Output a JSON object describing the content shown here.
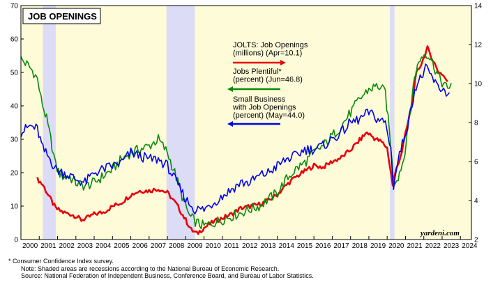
{
  "chart_data": {
    "type": "line",
    "title": "JOB OPENINGS",
    "brand": "yardeni.com",
    "left_axis": {
      "ylim": [
        0,
        70
      ],
      "ticks": [
        0,
        10,
        20,
        30,
        40,
        50,
        60,
        70
      ]
    },
    "right_axis": {
      "ylim": [
        2,
        14
      ],
      "ticks": [
        2,
        4,
        6,
        8,
        10,
        12,
        14
      ]
    },
    "x_range": [
      2000,
      2024.6
    ],
    "x_tick_labels": [
      "2000",
      "2001",
      "2002",
      "2003",
      "2004",
      "2005",
      "2006",
      "2007",
      "2008",
      "2009",
      "2010",
      "2011",
      "2012",
      "2013",
      "2014",
      "2015",
      "2016",
      "2017",
      "2018",
      "2019",
      "2020",
      "2021",
      "2022",
      "2023",
      "2024"
    ],
    "recessions": [
      [
        2001.2,
        2001.9
      ],
      [
        2007.95,
        2009.5
      ],
      [
        2020.15,
        2020.4
      ]
    ],
    "grid": false,
    "legend_placement": "top-center",
    "series": [
      {
        "name": "JOLTS: Job Openings",
        "legend_lines": [
          "JOLTS: Job Openings",
          "(millions) (Apr=10.1)"
        ],
        "axis": "right",
        "color": "#e8000b",
        "points": [
          [
            2000.9,
            5.1
          ],
          [
            2001.2,
            4.8
          ],
          [
            2001.6,
            4.1
          ],
          [
            2001.9,
            3.6
          ],
          [
            2002.3,
            3.4
          ],
          [
            2002.7,
            3.3
          ],
          [
            2003.0,
            3.2
          ],
          [
            2003.3,
            3.0
          ],
          [
            2003.6,
            3.1
          ],
          [
            2004.0,
            3.3
          ],
          [
            2004.5,
            3.4
          ],
          [
            2005.0,
            3.7
          ],
          [
            2005.5,
            3.9
          ],
          [
            2006.0,
            4.3
          ],
          [
            2006.5,
            4.5
          ],
          [
            2007.0,
            4.5
          ],
          [
            2007.5,
            4.6
          ],
          [
            2008.0,
            4.4
          ],
          [
            2008.5,
            3.8
          ],
          [
            2009.0,
            3.0
          ],
          [
            2009.3,
            2.5
          ],
          [
            2009.6,
            2.3
          ],
          [
            2010.0,
            2.6
          ],
          [
            2010.5,
            2.9
          ],
          [
            2011.0,
            3.1
          ],
          [
            2011.5,
            3.3
          ],
          [
            2012.0,
            3.6
          ],
          [
            2012.5,
            3.7
          ],
          [
            2013.0,
            3.8
          ],
          [
            2013.5,
            4.0
          ],
          [
            2014.0,
            4.3
          ],
          [
            2014.5,
            4.8
          ],
          [
            2015.0,
            5.2
          ],
          [
            2015.5,
            5.5
          ],
          [
            2016.0,
            5.8
          ],
          [
            2016.5,
            5.7
          ],
          [
            2017.0,
            6.0
          ],
          [
            2017.5,
            6.2
          ],
          [
            2018.0,
            6.6
          ],
          [
            2018.5,
            7.1
          ],
          [
            2018.9,
            7.5
          ],
          [
            2019.3,
            7.2
          ],
          [
            2019.7,
            7.0
          ],
          [
            2020.0,
            6.7
          ],
          [
            2020.3,
            4.8
          ],
          [
            2020.5,
            5.6
          ],
          [
            2020.8,
            6.5
          ],
          [
            2021.0,
            7.4
          ],
          [
            2021.3,
            8.7
          ],
          [
            2021.6,
            10.5
          ],
          [
            2021.9,
            11.1
          ],
          [
            2022.2,
            11.8
          ],
          [
            2022.5,
            11.2
          ],
          [
            2022.8,
            10.6
          ],
          [
            2023.0,
            10.5
          ],
          [
            2023.3,
            10.1
          ]
        ]
      },
      {
        "name": "Jobs Plentiful*",
        "legend_lines": [
          "Jobs Plentiful*",
          "(percent) (Jun=46.8)"
        ],
        "axis": "left",
        "color": "#0a8a0a",
        "points": [
          [
            2000.0,
            54
          ],
          [
            2000.4,
            52
          ],
          [
            2000.7,
            50
          ],
          [
            2000.9,
            48
          ],
          [
            2001.1,
            42
          ],
          [
            2001.4,
            36
          ],
          [
            2001.7,
            28
          ],
          [
            2001.9,
            22
          ],
          [
            2002.2,
            19
          ],
          [
            2002.6,
            19
          ],
          [
            2003.0,
            17
          ],
          [
            2003.5,
            16
          ],
          [
            2004.0,
            17
          ],
          [
            2004.5,
            19
          ],
          [
            2005.0,
            21
          ],
          [
            2005.5,
            24
          ],
          [
            2006.0,
            26
          ],
          [
            2006.5,
            27
          ],
          [
            2007.0,
            28
          ],
          [
            2007.5,
            30
          ],
          [
            2008.0,
            26
          ],
          [
            2008.4,
            20
          ],
          [
            2008.8,
            13
          ],
          [
            2009.2,
            7
          ],
          [
            2009.6,
            5
          ],
          [
            2010.0,
            4
          ],
          [
            2010.5,
            5
          ],
          [
            2011.0,
            6
          ],
          [
            2011.5,
            7
          ],
          [
            2012.0,
            8
          ],
          [
            2012.5,
            9
          ],
          [
            2013.0,
            10
          ],
          [
            2013.5,
            12
          ],
          [
            2014.0,
            14
          ],
          [
            2014.5,
            18
          ],
          [
            2015.0,
            21
          ],
          [
            2015.5,
            23
          ],
          [
            2016.0,
            26
          ],
          [
            2016.5,
            28
          ],
          [
            2017.0,
            31
          ],
          [
            2017.5,
            34
          ],
          [
            2018.0,
            38
          ],
          [
            2018.5,
            42
          ],
          [
            2019.0,
            45
          ],
          [
            2019.5,
            46
          ],
          [
            2019.9,
            44
          ],
          [
            2020.2,
            28
          ],
          [
            2020.35,
            17
          ],
          [
            2020.6,
            19
          ],
          [
            2020.9,
            24
          ],
          [
            2021.2,
            36
          ],
          [
            2021.5,
            49
          ],
          [
            2021.8,
            54
          ],
          [
            2022.1,
            56
          ],
          [
            2022.4,
            54
          ],
          [
            2022.7,
            50
          ],
          [
            2023.0,
            47
          ],
          [
            2023.3,
            45
          ],
          [
            2023.5,
            46.8
          ]
        ]
      },
      {
        "name": "Small Business with Job Openings",
        "legend_lines": [
          "Small Business",
          "with Job Openings",
          "(percent) (May=44.0)"
        ],
        "axis": "left",
        "color": "#0000ee",
        "points": [
          [
            2000.0,
            32
          ],
          [
            2000.5,
            34
          ],
          [
            2000.9,
            33
          ],
          [
            2001.2,
            27
          ],
          [
            2001.6,
            24
          ],
          [
            2001.9,
            21
          ],
          [
            2002.3,
            20
          ],
          [
            2002.7,
            19
          ],
          [
            2003.0,
            18
          ],
          [
            2003.5,
            17
          ],
          [
            2004.0,
            20
          ],
          [
            2004.5,
            21
          ],
          [
            2005.0,
            22
          ],
          [
            2005.5,
            23
          ],
          [
            2006.0,
            26
          ],
          [
            2006.5,
            25
          ],
          [
            2007.0,
            24
          ],
          [
            2007.5,
            24
          ],
          [
            2008.0,
            22
          ],
          [
            2008.5,
            17
          ],
          [
            2009.0,
            12
          ],
          [
            2009.5,
            9
          ],
          [
            2010.0,
            9
          ],
          [
            2010.5,
            11
          ],
          [
            2011.0,
            13
          ],
          [
            2011.5,
            15
          ],
          [
            2012.0,
            17
          ],
          [
            2012.5,
            17
          ],
          [
            2013.0,
            19
          ],
          [
            2013.5,
            20
          ],
          [
            2014.0,
            22
          ],
          [
            2014.5,
            24
          ],
          [
            2015.0,
            25
          ],
          [
            2015.5,
            27
          ],
          [
            2016.0,
            27
          ],
          [
            2016.5,
            28
          ],
          [
            2017.0,
            30
          ],
          [
            2017.5,
            32
          ],
          [
            2018.0,
            35
          ],
          [
            2018.5,
            36
          ],
          [
            2019.0,
            38
          ],
          [
            2019.5,
            36
          ],
          [
            2019.9,
            35
          ],
          [
            2020.2,
            27
          ],
          [
            2020.35,
            16
          ],
          [
            2020.6,
            24
          ],
          [
            2020.9,
            30
          ],
          [
            2021.2,
            36
          ],
          [
            2021.5,
            45
          ],
          [
            2021.8,
            48
          ],
          [
            2022.1,
            51
          ],
          [
            2022.4,
            49
          ],
          [
            2022.7,
            46
          ],
          [
            2023.0,
            45
          ],
          [
            2023.3,
            44
          ],
          [
            2023.4,
            44.0
          ]
        ]
      }
    ]
  },
  "notes": {
    "footnote": "*  Consumer Confidence Index survey.",
    "note": "Note: Shaded areas are recessions according to the National Bureau of Economic Research.",
    "source": "Source: National Federation of Independent Business, Conference Board, and Bureau of Labor Statistics."
  }
}
